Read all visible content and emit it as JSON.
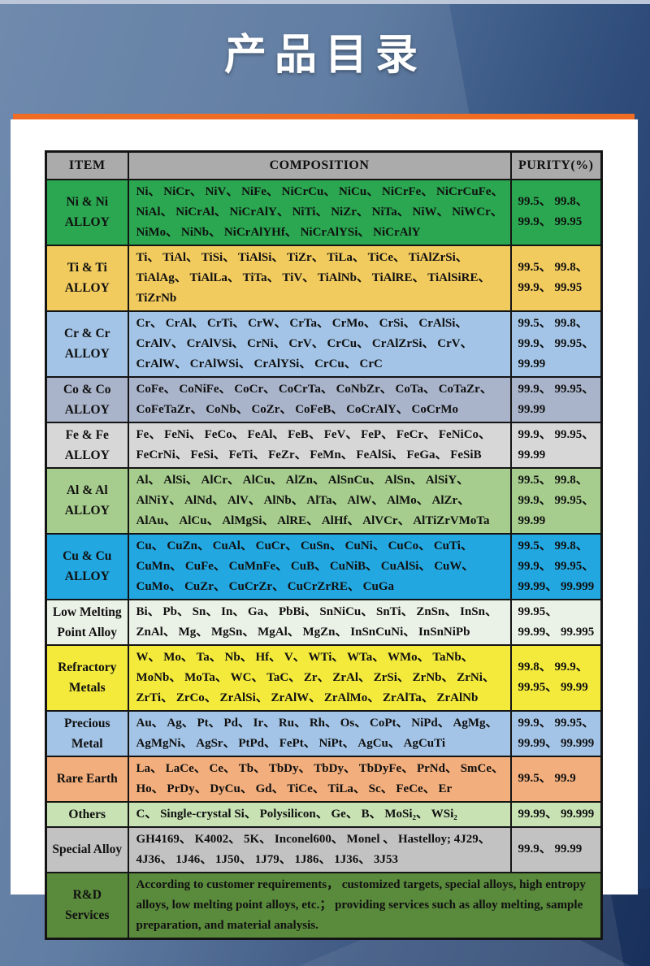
{
  "page": {
    "title": "产品目录"
  },
  "colors": {
    "orange_bar": "#f06c22",
    "header_bg": "#ababab",
    "background_light": "#617fa5",
    "background_dark": "#1b3563"
  },
  "table": {
    "headers": [
      "ITEM",
      "COMPOSITION",
      "PURITY(%)"
    ],
    "rows": [
      {
        "item": "Ni & Ni ALLOY",
        "composition": "Ni、 NiCr、 NiV、 NiFe、 NiCrCu、 NiCu、 NiCrFe、 NiCrCuFe、 NiAl、 NiCrAl、 NiCrAlY、 NiTi、 NiZr、 NiTa、 NiW、 NiWCr、 NiMo、 NiNb、 NiCrAlYHf、 NiCrAlYSi、 NiCrAlY",
        "purity": "99.5、 99.8、 99.9、 99.95",
        "bg": "#2aa750"
      },
      {
        "item": "Ti & Ti ALLOY",
        "composition": "Ti、 TiAl、 TiSi、 TiAlSi、 TiZr、 TiLa、 TiCe、 TiAlZrSi、 TiAlAg、 TiAlLa、 TiTa、 TiV、 TiAlNb、 TiAlRE、 TiAlSiRE、 TiZrNb",
        "purity": "99.5、 99.8、 99.9、 99.95",
        "bg": "#f2cb5e"
      },
      {
        "item": "Cr & Cr ALLOY",
        "composition": "Cr、 CrAl、 CrTi、 CrW、 CrTa、 CrMo、 CrSi、 CrAlSi、 CrAlV、 CrAlVSi、 CrNi、 CrV、 CrCu、 CrAlZrSi、 CrV、 CrAlW、 CrAlWSi、 CrAlYSi、 CrCu、 CrC",
        "purity": "99.5、 99.8、 99.9、 99.95、 99.99",
        "bg": "#a3c4e6"
      },
      {
        "item": "Co & Co ALLOY",
        "composition": "CoFe、 CoNiFe、 CoCr、 CoCrTa、 CoNbZr、 CoTa、 CoTaZr、 CoFeTaZr、 CoNb、 CoZr、 CoFeB、 CoCrAlY、 CoCrMo",
        "purity": "99.9、 99.95、 99.99",
        "bg": "#a9b3c9"
      },
      {
        "item": "Fe & Fe ALLOY",
        "composition": "Fe、 FeNi、 FeCo、 FeAl、 FeB、 FeV、 FeP、 FeCr、 FeNiCo、 FeCrNi、 FeSi、 FeTi、 FeZr、 FeMn、 FeAlSi、 FeGa、 FeSiB",
        "purity": "99.9、 99.95、 99.99",
        "bg": "#d7d7d7"
      },
      {
        "item": "Al & Al ALLOY",
        "composition": "Al、 AlSi、 AlCr、 AlCu、 AlZn、 AlSnCu、 AlSn、 AlSiY、 AlNiY、 AlNd、 AlV、 AlNb、 AlTa、 AlW、 AlMo、 AlZr、 AlAu、 AlCu、 AlMgSi、 AlRE、 AlHf、 AlVCr、 AlTiZrVMoTa",
        "purity": "99.5、 99.8、 99.9、 99.95、 99.99",
        "bg": "#a6cd8d"
      },
      {
        "item": "Cu & Cu ALLOY",
        "composition": "Cu、 CuZn、 CuAl、 CuCr、 CuSn、 CuNi、 CuCo、 CuTi、 CuMn、 CuFe、 CuMnFe、 CuB、 CuNiB、 CuAlSi、 CuW、 CuMo、 CuZr、 CuCrZr、 CuCrZrRE、 CuGa",
        "purity": "99.5、 99.8、 99.9、 99.95、 99.99、 99.999",
        "bg": "#22a7e0"
      },
      {
        "item": "Low Melting Point Alloy",
        "composition": "Bi、 Pb、 Sn、 In、 Ga、 PbBi、 SnNiCu、 SnTi、 ZnSn、 InSn、 ZnAl、 Mg、 MgSn、 MgAl、 MgZn、 InSnCuNi、 InSnNiPb",
        "purity": "99.95、 99.99、 99.995",
        "bg": "#eaf1e6"
      },
      {
        "item": "Refractory Metals",
        "composition": "W、 Mo、 Ta、 Nb、 Hf、 V、 WTi、 WTa、 WMo、 TaNb、 MoNb、 MoTa、 WC、 TaC、 Zr、 ZrAl、 ZrSi、 ZrNb、 ZrNi、 ZrTi、 ZrCo、 ZrAlSi、 ZrAlW、 ZrAlMo、 ZrAlTa、 ZrAlNb",
        "purity": "99.8、 99.9、 99.95、 99.99",
        "bg": "#f3ea3c"
      },
      {
        "item": "Precious Metal",
        "composition": "Au、 Ag、 Pt、 Pd、 Ir、 Ru、 Rh、 Os、 CoPt、 NiPd、 AgMg、 AgMgNi、 AgSr、 PtPd、 FePt、 NiPt、 AgCu、 AgCuTi",
        "purity": "99.9、 99.95、 99.99、 99.999",
        "bg": "#a3c4e6"
      },
      {
        "item": "Rare Earth",
        "composition": "La、 LaCe、 Ce、 Tb、 TbDy、 TbDy、 TbDyFe、 PrNd、 SmCe、 Ho、 PrDy、 DyCu、 Gd、 TiCe、 TiLa、 Sc、 FeCe、 Er",
        "purity": "99.5、 99.9",
        "bg": "#f2ae7c"
      },
      {
        "item": "Others",
        "composition": "C、 Single-crystal Si、 Polysilicon、 Ge、 B、 MoSi₂、 WSi₂",
        "purity": "99.99、 99.999",
        "bg": "#c8e2b4"
      },
      {
        "item": "Special Alloy",
        "composition": "GH4169、 K4002、 5K、 Inconel600、 Monel 、 Hastelloy; 4J29、 4J36、 1J46、 1J50、 1J79、 1J86、 1J36、 3J53",
        "purity": "99.9、 99.99",
        "bg": "#c2c2c2"
      },
      {
        "item": "R&D Services",
        "composition": "According to customer requirements， customized targets, special alloys, high entropy alloys, low melting point alloys, etc.； providing services such as alloy melting, sample preparation, and material analysis.",
        "purity": "",
        "bg": "#5a8a3c"
      }
    ]
  }
}
